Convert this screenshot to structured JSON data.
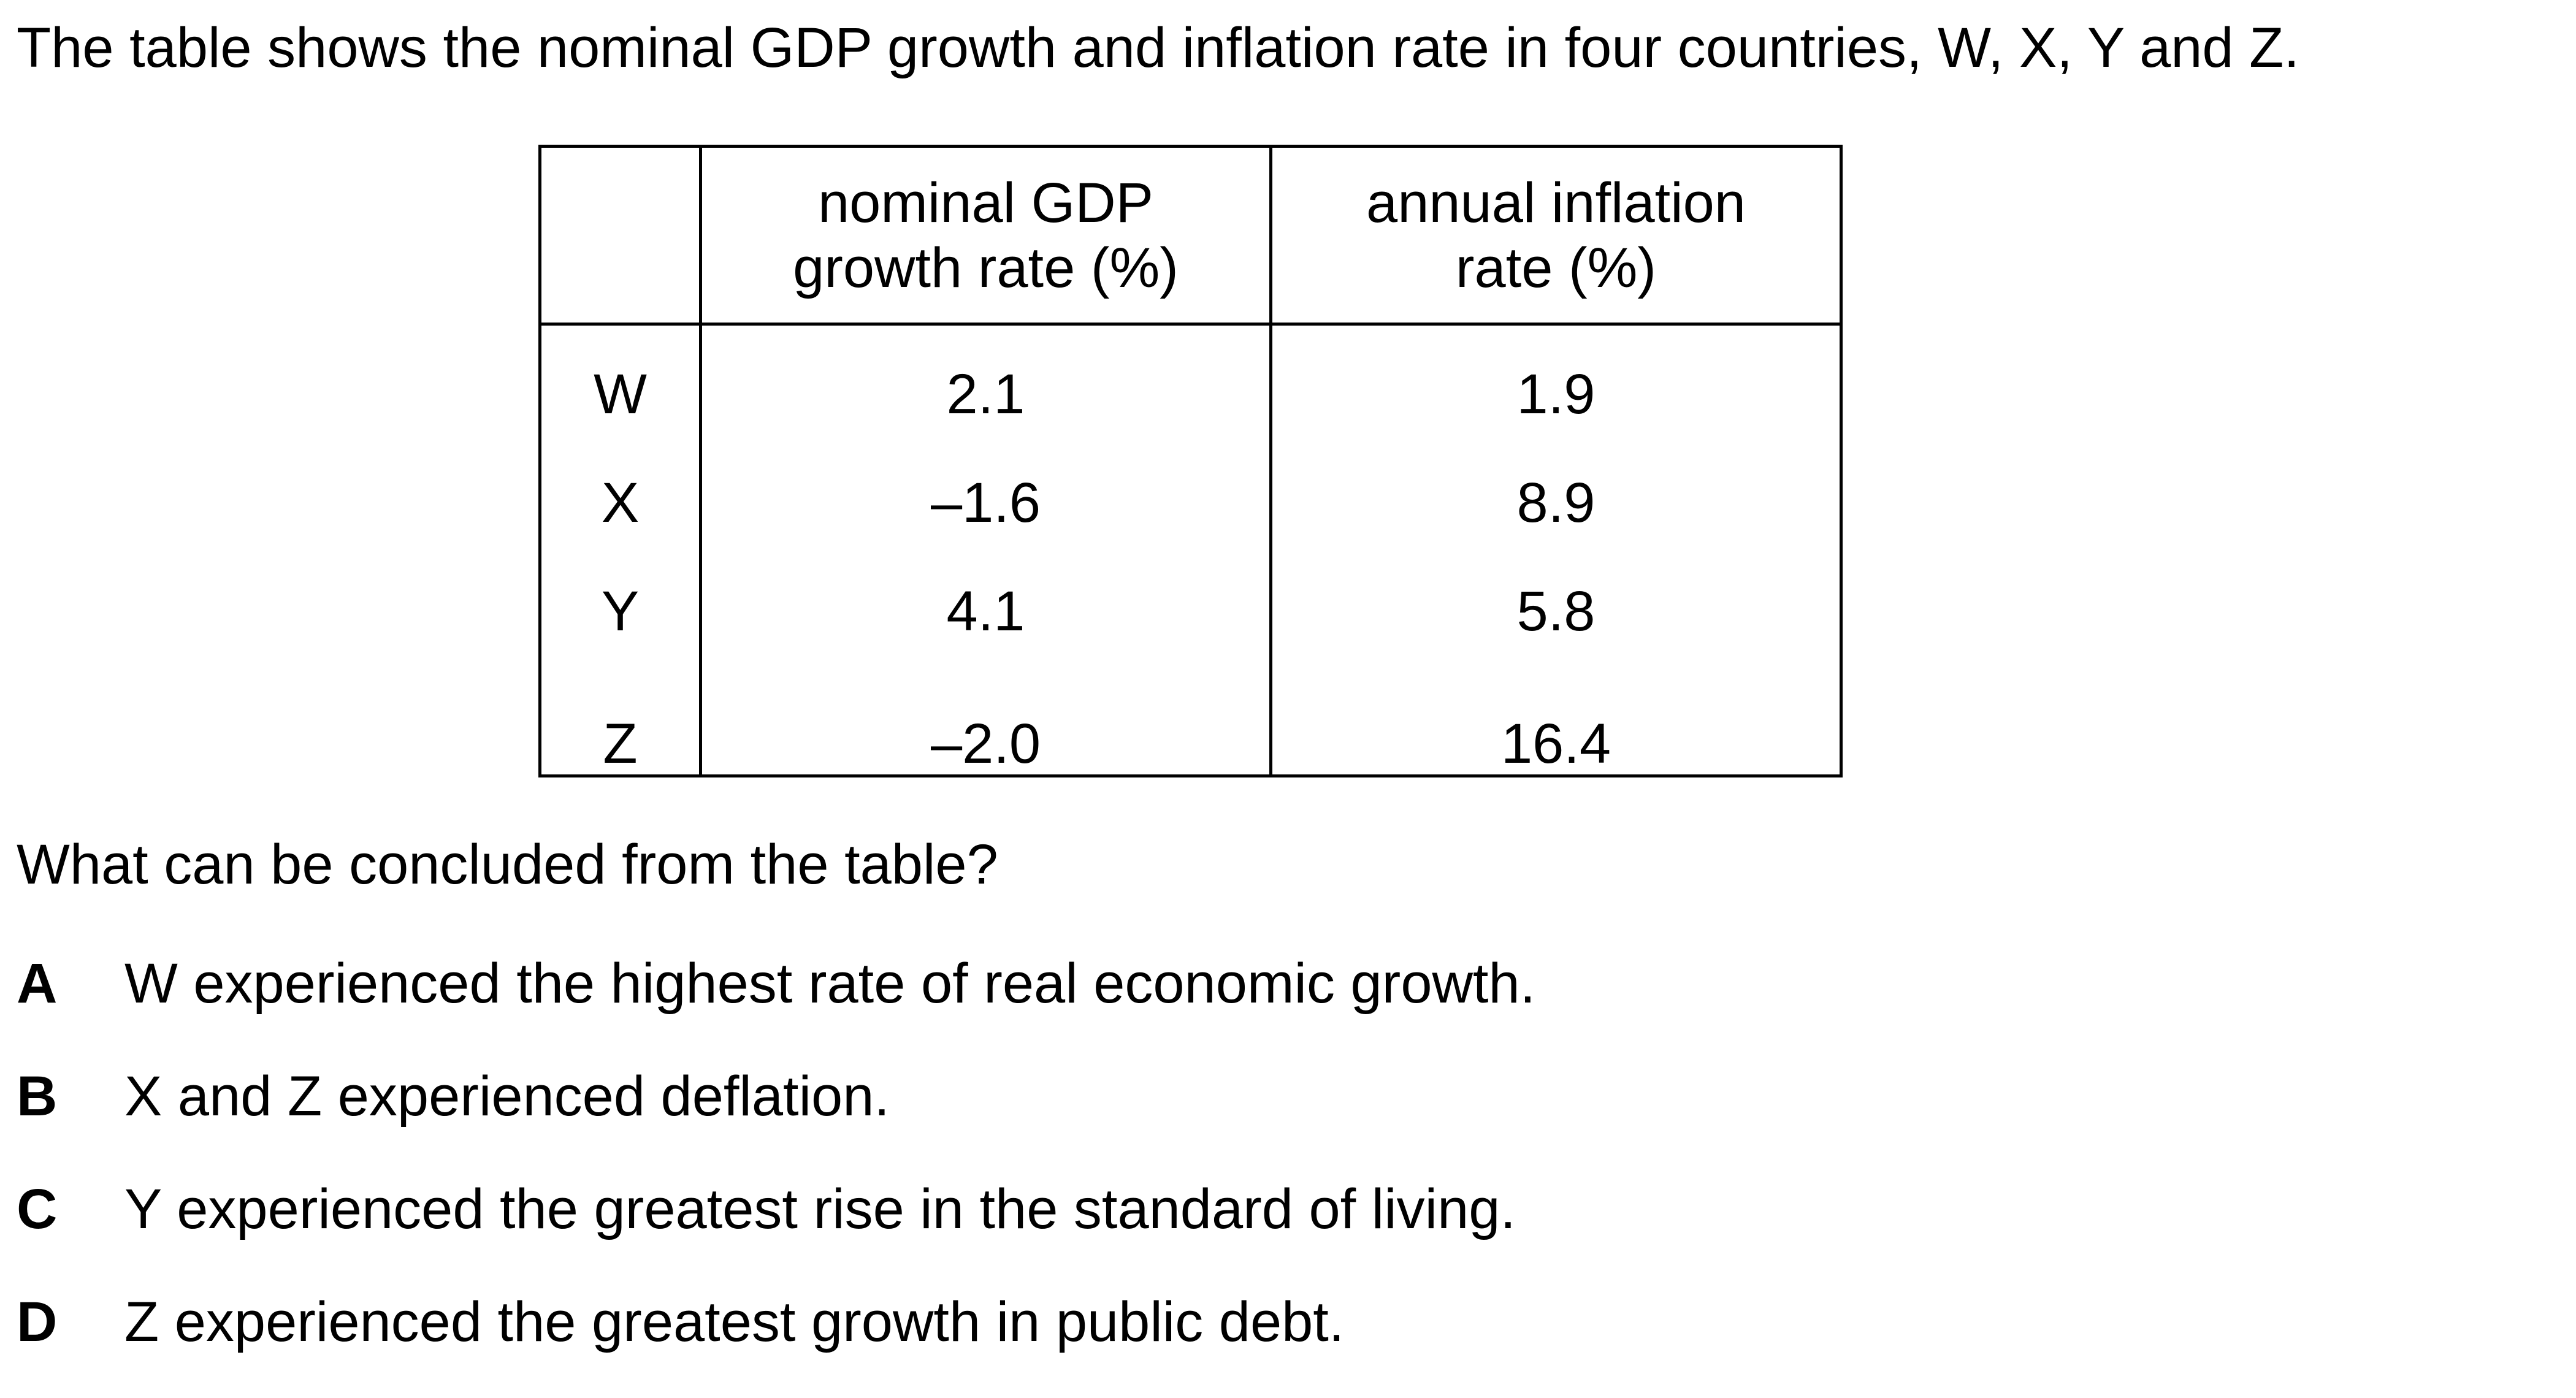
{
  "intro_text": "The table shows the nominal GDP growth and inflation rate in four countries, W, X, Y and Z.",
  "table": {
    "headers": [
      "",
      "nominal GDP growth rate (%)",
      "annual inflation rate (%)"
    ],
    "header_lines": {
      "gdp": [
        "nominal GDP",
        "growth rate (%)"
      ],
      "inflation": [
        "annual inflation",
        "rate (%)"
      ]
    },
    "rows": [
      {
        "country": "W",
        "gdp": "2.1",
        "inflation": "1.9"
      },
      {
        "country": "X",
        "gdp": "–1.6",
        "inflation": "8.9"
      },
      {
        "country": "Y",
        "gdp": "4.1",
        "inflation": "5.8"
      },
      {
        "country": "Z",
        "gdp": "–2.0",
        "inflation": "16.4"
      }
    ]
  },
  "question": "What can be concluded from the table?",
  "options": [
    {
      "letter": "A",
      "text": "W experienced the highest rate of real economic growth."
    },
    {
      "letter": "B",
      "text": "X and Z experienced deflation."
    },
    {
      "letter": "C",
      "text": "Y experienced the greatest rise in the standard of living."
    },
    {
      "letter": "D",
      "text": "Z experienced the greatest growth in public debt."
    }
  ]
}
